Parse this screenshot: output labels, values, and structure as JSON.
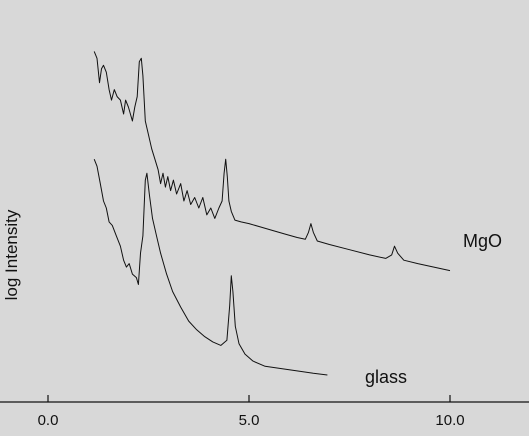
{
  "chart_data": {
    "type": "line",
    "title": "",
    "xlabel": "",
    "ylabel": "log Intensity",
    "xlim": [
      0,
      12
    ],
    "x_ticks": [
      {
        "value": 0,
        "label": "0.0"
      },
      {
        "value": 5,
        "label": "5.0"
      },
      {
        "value": 10,
        "label": "10.0"
      }
    ],
    "ylim": [
      0,
      10
    ],
    "grid": false,
    "legend": "none",
    "line_color": "#111111",
    "background_color": "#d8d8d8",
    "series": [
      {
        "name": "MgO",
        "points": [
          [
            1.15,
            9.3
          ],
          [
            1.22,
            9.1
          ],
          [
            1.28,
            8.4
          ],
          [
            1.33,
            8.8
          ],
          [
            1.38,
            8.9
          ],
          [
            1.45,
            8.7
          ],
          [
            1.52,
            8.2
          ],
          [
            1.58,
            7.9
          ],
          [
            1.65,
            8.2
          ],
          [
            1.72,
            8.0
          ],
          [
            1.8,
            7.9
          ],
          [
            1.88,
            7.5
          ],
          [
            1.93,
            7.9
          ],
          [
            2.0,
            7.7
          ],
          [
            2.05,
            7.5
          ],
          [
            2.1,
            7.3
          ],
          [
            2.16,
            7.7
          ],
          [
            2.22,
            8.0
          ],
          [
            2.27,
            9.0
          ],
          [
            2.32,
            9.1
          ],
          [
            2.36,
            8.6
          ],
          [
            2.42,
            7.3
          ],
          [
            2.5,
            6.9
          ],
          [
            2.58,
            6.5
          ],
          [
            2.66,
            6.2
          ],
          [
            2.74,
            5.9
          ],
          [
            2.8,
            5.5
          ],
          [
            2.86,
            5.8
          ],
          [
            2.92,
            5.4
          ],
          [
            2.98,
            5.7
          ],
          [
            3.05,
            5.3
          ],
          [
            3.12,
            5.6
          ],
          [
            3.2,
            5.2
          ],
          [
            3.3,
            5.5
          ],
          [
            3.38,
            5.0
          ],
          [
            3.46,
            5.3
          ],
          [
            3.55,
            4.9
          ],
          [
            3.65,
            5.1
          ],
          [
            3.75,
            4.8
          ],
          [
            3.85,
            5.1
          ],
          [
            3.95,
            4.6
          ],
          [
            4.05,
            4.8
          ],
          [
            4.15,
            4.5
          ],
          [
            4.25,
            4.8
          ],
          [
            4.33,
            5.0
          ],
          [
            4.38,
            5.8
          ],
          [
            4.42,
            6.2
          ],
          [
            4.46,
            5.7
          ],
          [
            4.5,
            5.0
          ],
          [
            4.56,
            4.7
          ],
          [
            4.65,
            4.45
          ],
          [
            4.8,
            4.4
          ],
          [
            5.0,
            4.35
          ],
          [
            5.3,
            4.25
          ],
          [
            5.6,
            4.15
          ],
          [
            5.9,
            4.05
          ],
          [
            6.2,
            3.95
          ],
          [
            6.4,
            3.9
          ],
          [
            6.48,
            4.1
          ],
          [
            6.54,
            4.35
          ],
          [
            6.6,
            4.1
          ],
          [
            6.7,
            3.85
          ],
          [
            7.0,
            3.75
          ],
          [
            7.5,
            3.6
          ],
          [
            8.0,
            3.45
          ],
          [
            8.4,
            3.35
          ],
          [
            8.55,
            3.45
          ],
          [
            8.62,
            3.7
          ],
          [
            8.7,
            3.5
          ],
          [
            8.85,
            3.3
          ],
          [
            9.2,
            3.2
          ],
          [
            9.6,
            3.1
          ],
          [
            10.0,
            3.0
          ]
        ]
      },
      {
        "name": "glass",
        "points": [
          [
            1.15,
            6.2
          ],
          [
            1.22,
            6.0
          ],
          [
            1.3,
            5.5
          ],
          [
            1.38,
            5.0
          ],
          [
            1.45,
            4.8
          ],
          [
            1.52,
            4.4
          ],
          [
            1.6,
            4.3
          ],
          [
            1.7,
            4.0
          ],
          [
            1.8,
            3.7
          ],
          [
            1.88,
            3.3
          ],
          [
            1.95,
            3.1
          ],
          [
            2.02,
            3.2
          ],
          [
            2.1,
            2.9
          ],
          [
            2.2,
            2.8
          ],
          [
            2.25,
            2.6
          ],
          [
            2.3,
            3.5
          ],
          [
            2.36,
            4.0
          ],
          [
            2.42,
            5.6
          ],
          [
            2.46,
            5.8
          ],
          [
            2.52,
            5.2
          ],
          [
            2.6,
            4.5
          ],
          [
            2.7,
            4.0
          ],
          [
            2.8,
            3.5
          ],
          [
            2.95,
            2.9
          ],
          [
            3.1,
            2.4
          ],
          [
            3.3,
            1.95
          ],
          [
            3.5,
            1.55
          ],
          [
            3.7,
            1.3
          ],
          [
            3.9,
            1.1
          ],
          [
            4.1,
            0.95
          ],
          [
            4.3,
            0.85
          ],
          [
            4.45,
            1.0
          ],
          [
            4.52,
            2.0
          ],
          [
            4.56,
            2.85
          ],
          [
            4.6,
            2.4
          ],
          [
            4.66,
            1.4
          ],
          [
            4.75,
            0.9
          ],
          [
            4.9,
            0.6
          ],
          [
            5.1,
            0.4
          ],
          [
            5.4,
            0.25
          ],
          [
            5.7,
            0.2
          ],
          [
            6.0,
            0.15
          ],
          [
            6.3,
            0.1
          ],
          [
            6.6,
            0.05
          ],
          [
            6.95,
            0.0
          ]
        ]
      }
    ],
    "series_labels": [
      {
        "text": "MgO"
      },
      {
        "text": "glass"
      }
    ]
  }
}
